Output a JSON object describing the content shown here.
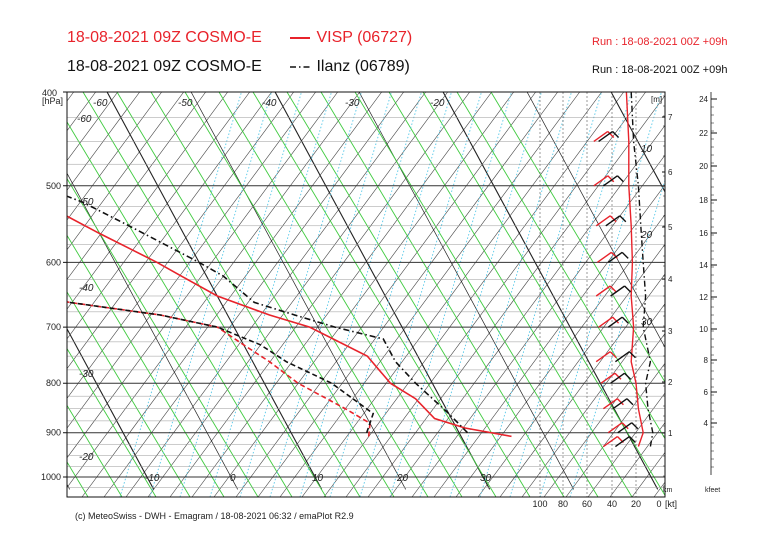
{
  "header": {
    "title_red": "18-08-2021 09Z COSMO-E",
    "legend_red": "VISP (06727)",
    "title_black": "18-08-2021 09Z COSMO-E",
    "legend_black": "Ilanz (06789)",
    "run_red": "Run : 18-08-2021 00Z +09h",
    "run_black": "Run : 18-08-2021 00Z +09h"
  },
  "footer": {
    "credit": "(c) MeteoSwiss - DWH - Emagram / 18-08-2021 06:32 / emaPlot R2.9"
  },
  "colors": {
    "red": "#e8232b",
    "black": "#111111",
    "isotherm": "#222222",
    "dry_adiabat": "#444444",
    "moist_adiabat": "#3ecb3e",
    "mixing_ratio": "#55c8e8"
  },
  "chart_data": {
    "type": "line",
    "title": "",
    "y_axis": {
      "label": "[hPa]",
      "ticks": [
        "400",
        "500",
        "600",
        "700",
        "800",
        "900",
        "1000"
      ],
      "scale": "log",
      "range": [
        400,
        1030
      ]
    },
    "isotherm_labels": [
      "-60",
      "-60",
      "-50",
      "-50",
      "-40",
      "-40",
      "-30",
      "-30",
      "-20",
      "-20",
      "-10",
      "0",
      "10",
      "20",
      "30"
    ],
    "km_axis": {
      "label": "[m]",
      "ticks": [
        "1",
        "2",
        "3",
        "4",
        "5",
        "6",
        "7"
      ],
      "unit_label": "km"
    },
    "wind_axis": {
      "label": "[kt]",
      "ticks": [
        "100",
        "80",
        "60",
        "40",
        "20",
        "0"
      ]
    },
    "kfeet_axis": {
      "label": "kfeet",
      "ticks": [
        "4",
        "6",
        "8",
        "10",
        "12",
        "14",
        "16",
        "18",
        "20",
        "22",
        "24"
      ]
    },
    "series": [
      {
        "name": "VISP (06727)",
        "kind": "temperature",
        "color": "red",
        "points": [
          [
            908,
            26
          ],
          [
            890,
            21
          ],
          [
            870,
            18
          ],
          [
            830,
            17
          ],
          [
            800,
            15
          ],
          [
            750,
            14
          ],
          [
            700,
            9
          ],
          [
            680,
            5
          ],
          [
            650,
            0
          ],
          [
            620,
            -3
          ],
          [
            600,
            -5
          ],
          [
            560,
            -10
          ],
          [
            520,
            -15
          ],
          [
            500,
            -18
          ],
          [
            450,
            -25
          ],
          [
            400,
            -33
          ]
        ]
      },
      {
        "name": "VISP (06727)",
        "kind": "dewpoint",
        "color": "red",
        "points": [
          [
            908,
            9
          ],
          [
            880,
            10
          ],
          [
            850,
            8
          ],
          [
            800,
            4
          ],
          [
            760,
            2
          ],
          [
            730,
            0
          ],
          [
            700,
            -2
          ],
          [
            680,
            -8
          ],
          [
            660,
            -18
          ],
          [
            640,
            -24
          ],
          [
            620,
            -30
          ],
          [
            605,
            -33
          ],
          [
            590,
            -33
          ],
          [
            570,
            -31
          ],
          [
            540,
            -27
          ],
          [
            500,
            -24
          ],
          [
            480,
            -24
          ],
          [
            450,
            -25
          ],
          [
            400,
            -35
          ]
        ]
      },
      {
        "name": "Ilanz (06789)",
        "kind": "temperature",
        "color": "black",
        "points": [
          [
            900,
            21
          ],
          [
            860,
            20
          ],
          [
            800,
            18
          ],
          [
            760,
            17
          ],
          [
            720,
            17
          ],
          [
            700,
            12
          ],
          [
            680,
            8
          ],
          [
            660,
            4
          ],
          [
            620,
            2
          ],
          [
            600,
            0
          ],
          [
            550,
            -6
          ],
          [
            520,
            -10
          ],
          [
            500,
            -14
          ],
          [
            450,
            -22
          ],
          [
            400,
            -32
          ]
        ]
      },
      {
        "name": "Ilanz (06789)",
        "kind": "dewpoint",
        "color": "black",
        "points": [
          [
            900,
            9
          ],
          [
            860,
            11
          ],
          [
            800,
            8
          ],
          [
            760,
            4
          ],
          [
            730,
            2
          ],
          [
            700,
            -2
          ],
          [
            680,
            -8
          ],
          [
            660,
            -18
          ],
          [
            640,
            -25
          ],
          [
            620,
            -31
          ],
          [
            600,
            -35
          ],
          [
            580,
            -35
          ],
          [
            560,
            -31
          ],
          [
            520,
            -25
          ],
          [
            500,
            -20
          ],
          [
            450,
            -20
          ],
          [
            400,
            -33
          ]
        ]
      },
      {
        "name": "VISP (06727)",
        "kind": "wind_speed_kt",
        "color": "red",
        "points": [
          [
            930,
            18
          ],
          [
            900,
            14
          ],
          [
            850,
            18
          ],
          [
            800,
            20
          ],
          [
            760,
            24
          ],
          [
            700,
            22
          ],
          [
            650,
            24
          ],
          [
            600,
            23
          ],
          [
            550,
            24
          ],
          [
            500,
            26
          ],
          [
            450,
            26
          ],
          [
            400,
            28
          ]
        ]
      },
      {
        "name": "Ilanz (06789)",
        "kind": "wind_speed_kt",
        "color": "black",
        "points": [
          [
            930,
            8
          ],
          [
            900,
            6
          ],
          [
            850,
            10
          ],
          [
            800,
            12
          ],
          [
            760,
            8
          ],
          [
            700,
            14
          ],
          [
            650,
            12
          ],
          [
            600,
            14
          ],
          [
            550,
            16
          ],
          [
            500,
            18
          ],
          [
            450,
            22
          ],
          [
            400,
            24
          ]
        ]
      }
    ]
  }
}
